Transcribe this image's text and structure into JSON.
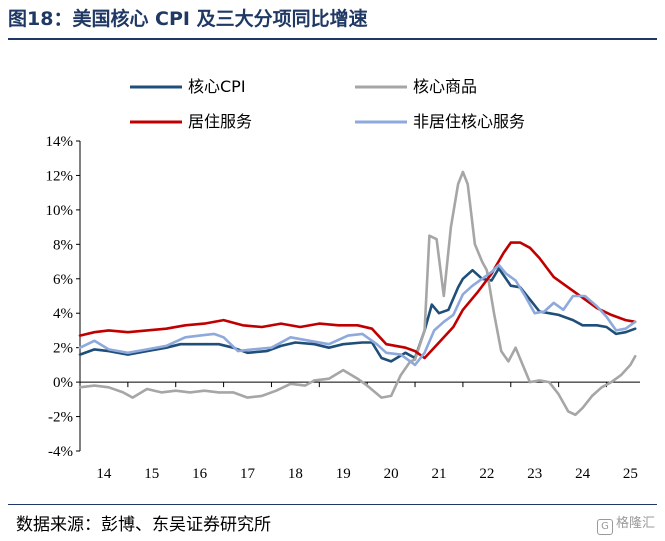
{
  "title": "图18：美国核心 CPI 及三大分项同比增速",
  "source": "数据来源：彭博、东吴证券研究所",
  "watermark": "格隆汇",
  "chart_data": {
    "type": "line",
    "title": "图18：美国核心 CPI 及三大分项同比增速",
    "xlabel": "",
    "ylabel": "",
    "x_ticks": [
      "14",
      "15",
      "16",
      "17",
      "18",
      "19",
      "20",
      "21",
      "22",
      "23",
      "24",
      "25"
    ],
    "y_ticks": [
      "14%",
      "12%",
      "10%",
      "8%",
      "6%",
      "4%",
      "2%",
      "0%",
      "-2%",
      "-4%"
    ],
    "xlim": [
      2014.0,
      2025.7
    ],
    "ylim": [
      -4,
      14
    ],
    "grid": false,
    "legend_position": "top",
    "series": [
      {
        "name": "核心CPI",
        "color": "#1f4e79",
        "points": [
          [
            2014.0,
            1.6
          ],
          [
            2014.3,
            1.9
          ],
          [
            2014.6,
            1.8
          ],
          [
            2015.0,
            1.6
          ],
          [
            2015.4,
            1.8
          ],
          [
            2015.8,
            2.0
          ],
          [
            2016.1,
            2.2
          ],
          [
            2016.5,
            2.2
          ],
          [
            2016.9,
            2.2
          ],
          [
            2017.2,
            2.0
          ],
          [
            2017.5,
            1.7
          ],
          [
            2017.9,
            1.8
          ],
          [
            2018.2,
            2.1
          ],
          [
            2018.5,
            2.3
          ],
          [
            2018.9,
            2.2
          ],
          [
            2019.2,
            2.0
          ],
          [
            2019.5,
            2.2
          ],
          [
            2019.9,
            2.3
          ],
          [
            2020.1,
            2.3
          ],
          [
            2020.3,
            1.4
          ],
          [
            2020.5,
            1.2
          ],
          [
            2020.8,
            1.7
          ],
          [
            2021.0,
            1.4
          ],
          [
            2021.2,
            3.0
          ],
          [
            2021.35,
            4.5
          ],
          [
            2021.5,
            4.0
          ],
          [
            2021.7,
            4.2
          ],
          [
            2021.9,
            5.5
          ],
          [
            2022.0,
            6.0
          ],
          [
            2022.2,
            6.5
          ],
          [
            2022.4,
            6.0
          ],
          [
            2022.6,
            5.9
          ],
          [
            2022.75,
            6.6
          ],
          [
            2022.9,
            6.0
          ],
          [
            2023.0,
            5.6
          ],
          [
            2023.2,
            5.5
          ],
          [
            2023.4,
            4.8
          ],
          [
            2023.6,
            4.1
          ],
          [
            2023.8,
            4.0
          ],
          [
            2024.0,
            3.9
          ],
          [
            2024.3,
            3.6
          ],
          [
            2024.5,
            3.3
          ],
          [
            2024.8,
            3.3
          ],
          [
            2025.0,
            3.2
          ],
          [
            2025.2,
            2.8
          ],
          [
            2025.4,
            2.9
          ],
          [
            2025.6,
            3.1
          ]
        ]
      },
      {
        "name": "核心商品",
        "color": "#a6a6a6",
        "points": [
          [
            2014.0,
            -0.3
          ],
          [
            2014.3,
            -0.2
          ],
          [
            2014.6,
            -0.3
          ],
          [
            2014.9,
            -0.6
          ],
          [
            2015.1,
            -0.9
          ],
          [
            2015.4,
            -0.4
          ],
          [
            2015.7,
            -0.6
          ],
          [
            2016.0,
            -0.5
          ],
          [
            2016.3,
            -0.6
          ],
          [
            2016.6,
            -0.5
          ],
          [
            2016.9,
            -0.6
          ],
          [
            2017.2,
            -0.6
          ],
          [
            2017.5,
            -0.9
          ],
          [
            2017.8,
            -0.8
          ],
          [
            2018.1,
            -0.5
          ],
          [
            2018.4,
            -0.1
          ],
          [
            2018.7,
            -0.2
          ],
          [
            2018.9,
            0.1
          ],
          [
            2019.2,
            0.2
          ],
          [
            2019.5,
            0.7
          ],
          [
            2019.8,
            0.2
          ],
          [
            2020.0,
            -0.2
          ],
          [
            2020.3,
            -0.9
          ],
          [
            2020.5,
            -0.8
          ],
          [
            2020.7,
            0.4
          ],
          [
            2020.9,
            1.2
          ],
          [
            2021.0,
            1.3
          ],
          [
            2021.2,
            3.0
          ],
          [
            2021.3,
            8.5
          ],
          [
            2021.45,
            8.3
          ],
          [
            2021.6,
            5.0
          ],
          [
            2021.75,
            9.0
          ],
          [
            2021.9,
            11.5
          ],
          [
            2022.0,
            12.2
          ],
          [
            2022.1,
            11.5
          ],
          [
            2022.25,
            8.0
          ],
          [
            2022.4,
            7.0
          ],
          [
            2022.5,
            6.5
          ],
          [
            2022.65,
            4.0
          ],
          [
            2022.8,
            1.8
          ],
          [
            2022.95,
            1.2
          ],
          [
            2023.1,
            2.0
          ],
          [
            2023.25,
            1.0
          ],
          [
            2023.4,
            0.0
          ],
          [
            2023.6,
            0.1
          ],
          [
            2023.8,
            0.0
          ],
          [
            2024.0,
            -0.7
          ],
          [
            2024.2,
            -1.7
          ],
          [
            2024.35,
            -1.9
          ],
          [
            2024.5,
            -1.5
          ],
          [
            2024.7,
            -0.8
          ],
          [
            2024.9,
            -0.3
          ],
          [
            2025.1,
            0.0
          ],
          [
            2025.3,
            0.4
          ],
          [
            2025.5,
            1.0
          ],
          [
            2025.6,
            1.5
          ]
        ]
      },
      {
        "name": "居住服务",
        "color": "#c00000",
        "points": [
          [
            2014.0,
            2.7
          ],
          [
            2014.3,
            2.9
          ],
          [
            2014.6,
            3.0
          ],
          [
            2015.0,
            2.9
          ],
          [
            2015.4,
            3.0
          ],
          [
            2015.8,
            3.1
          ],
          [
            2016.2,
            3.3
          ],
          [
            2016.6,
            3.4
          ],
          [
            2017.0,
            3.6
          ],
          [
            2017.4,
            3.3
          ],
          [
            2017.8,
            3.2
          ],
          [
            2018.2,
            3.4
          ],
          [
            2018.6,
            3.2
          ],
          [
            2019.0,
            3.4
          ],
          [
            2019.4,
            3.3
          ],
          [
            2019.8,
            3.3
          ],
          [
            2020.1,
            3.1
          ],
          [
            2020.4,
            2.2
          ],
          [
            2020.8,
            2.0
          ],
          [
            2021.0,
            1.8
          ],
          [
            2021.2,
            1.4
          ],
          [
            2021.5,
            2.3
          ],
          [
            2021.8,
            3.2
          ],
          [
            2022.0,
            4.2
          ],
          [
            2022.3,
            5.2
          ],
          [
            2022.6,
            6.3
          ],
          [
            2022.85,
            7.5
          ],
          [
            2023.0,
            8.1
          ],
          [
            2023.2,
            8.1
          ],
          [
            2023.4,
            7.8
          ],
          [
            2023.6,
            7.2
          ],
          [
            2023.9,
            6.1
          ],
          [
            2024.2,
            5.5
          ],
          [
            2024.5,
            4.9
          ],
          [
            2024.8,
            4.3
          ],
          [
            2025.1,
            3.9
          ],
          [
            2025.4,
            3.6
          ],
          [
            2025.6,
            3.5
          ]
        ]
      },
      {
        "name": "非居住核心服务",
        "color": "#8ea9db",
        "points": [
          [
            2014.0,
            2.0
          ],
          [
            2014.3,
            2.4
          ],
          [
            2014.6,
            1.9
          ],
          [
            2015.0,
            1.7
          ],
          [
            2015.4,
            1.9
          ],
          [
            2015.8,
            2.1
          ],
          [
            2016.2,
            2.6
          ],
          [
            2016.5,
            2.7
          ],
          [
            2016.8,
            2.8
          ],
          [
            2017.0,
            2.6
          ],
          [
            2017.3,
            1.8
          ],
          [
            2017.6,
            1.9
          ],
          [
            2018.0,
            2.0
          ],
          [
            2018.4,
            2.6
          ],
          [
            2018.8,
            2.4
          ],
          [
            2019.2,
            2.2
          ],
          [
            2019.6,
            2.7
          ],
          [
            2019.9,
            2.8
          ],
          [
            2020.2,
            2.2
          ],
          [
            2020.4,
            1.7
          ],
          [
            2020.7,
            1.6
          ],
          [
            2020.9,
            1.2
          ],
          [
            2021.0,
            1.0
          ],
          [
            2021.2,
            1.7
          ],
          [
            2021.4,
            3.0
          ],
          [
            2021.6,
            3.5
          ],
          [
            2021.8,
            3.9
          ],
          [
            2022.0,
            5.1
          ],
          [
            2022.2,
            5.6
          ],
          [
            2022.4,
            6.0
          ],
          [
            2022.6,
            6.4
          ],
          [
            2022.75,
            6.8
          ],
          [
            2022.9,
            6.3
          ],
          [
            2023.1,
            5.9
          ],
          [
            2023.3,
            5.0
          ],
          [
            2023.5,
            4.0
          ],
          [
            2023.7,
            4.1
          ],
          [
            2023.9,
            4.6
          ],
          [
            2024.1,
            4.2
          ],
          [
            2024.3,
            5.0
          ],
          [
            2024.55,
            5.0
          ],
          [
            2024.8,
            4.4
          ],
          [
            2025.0,
            3.8
          ],
          [
            2025.2,
            3.0
          ],
          [
            2025.4,
            3.1
          ],
          [
            2025.6,
            3.5
          ]
        ]
      }
    ]
  }
}
